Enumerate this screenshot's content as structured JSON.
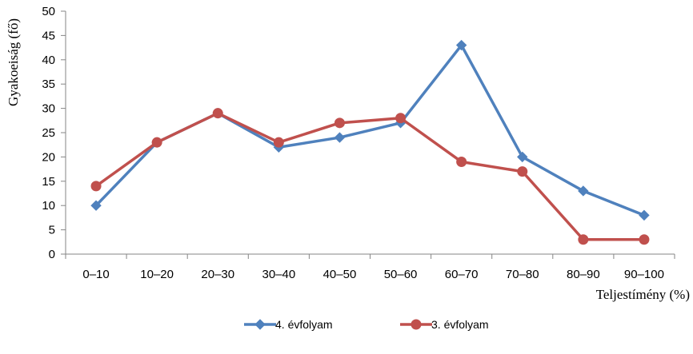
{
  "chart_data": {
    "type": "line",
    "title": "",
    "xlabel": "Teljestímény (%)",
    "ylabel": "Gyakoeiság (fő)",
    "categories": [
      "0–10",
      "10–20",
      "20–30",
      "30–40",
      "40–50",
      "50–60",
      "60–70",
      "70–80",
      "80–90",
      "90–100"
    ],
    "ylim": [
      0,
      50
    ],
    "yticks": [
      0,
      5,
      10,
      15,
      20,
      25,
      30,
      35,
      40,
      45,
      50
    ],
    "grid": false,
    "legend_position": "bottom",
    "series": [
      {
        "name": "4. évfolyam",
        "values": [
          10,
          23,
          29,
          22,
          24,
          27,
          43,
          20,
          13,
          8
        ],
        "color": "#4F81BD",
        "marker": "diamond"
      },
      {
        "name": "3. évfolyam",
        "values": [
          14,
          23,
          29,
          23,
          27,
          28,
          19,
          17,
          3,
          3
        ],
        "color": "#C0504D",
        "marker": "circle"
      }
    ]
  }
}
